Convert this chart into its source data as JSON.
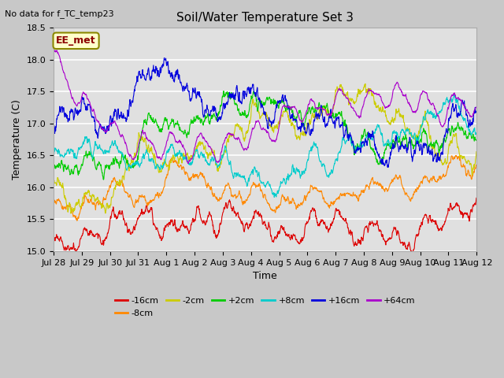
{
  "title": "Soil/Water Temperature Set 3",
  "xlabel": "Time",
  "ylabel": "Temperature (C)",
  "ylim": [
    15.0,
    18.5
  ],
  "fig_bg_color": "#c8c8c8",
  "plot_bg_color": "#e0e0e0",
  "grid_color": "#ffffff",
  "annotation_text": "No data for f_TC_temp23",
  "legend_label_text": "EE_met",
  "series": [
    {
      "label": "-16cm",
      "color": "#dd0000",
      "base": 15.18,
      "amp": 0.13,
      "trend": 0.00045,
      "noise_scale": 0.025,
      "seed": 1
    },
    {
      "label": "-8cm",
      "color": "#ff8800",
      "base": 15.77,
      "amp": 0.09,
      "trend": 0.0004,
      "noise_scale": 0.02,
      "seed": 2
    },
    {
      "label": "-2cm",
      "color": "#cccc00",
      "base": 16.05,
      "amp": 0.12,
      "trend": 0.00035,
      "noise_scale": 0.03,
      "seed": 3
    },
    {
      "label": "+2cm",
      "color": "#00cc00",
      "base": 16.3,
      "amp": 0.11,
      "trend": 0.0003,
      "noise_scale": 0.03,
      "seed": 4
    },
    {
      "label": "+8cm",
      "color": "#00cccc",
      "base": 16.48,
      "amp": 0.09,
      "trend": 0.00025,
      "noise_scale": 0.025,
      "seed": 5
    },
    {
      "label": "+16cm",
      "color": "#0000dd",
      "base": 16.9,
      "amp": 0.08,
      "trend": 0.0002,
      "noise_scale": 0.04,
      "seed": 6
    },
    {
      "label": "+64cm",
      "color": "#aa00cc",
      "base": 17.5,
      "amp": 0.3,
      "trend": 0.0,
      "noise_scale": 0.05,
      "seed": 7
    }
  ],
  "n_points": 1440,
  "samples_per_day": 96,
  "n_days": 15,
  "xtick_labels": [
    "Jul 28",
    "Jul 29",
    "Jul 30",
    "Jul 31",
    "Aug 1",
    "Aug 2",
    "Aug 3",
    "Aug 4",
    "Aug 5",
    "Aug 6",
    "Aug 7",
    "Aug 8",
    "Aug 9",
    "Aug 10",
    "Aug 11",
    "Aug 12"
  ]
}
